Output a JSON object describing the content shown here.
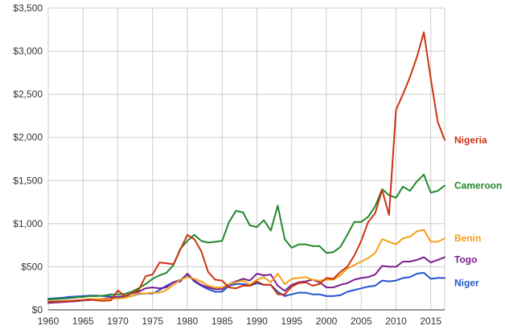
{
  "chart_data": {
    "type": "line",
    "title": "",
    "xlabel": "",
    "ylabel": "",
    "xlim": [
      1960,
      2017
    ],
    "ylim": [
      0,
      3500
    ],
    "y_ticks": [
      0,
      500,
      1000,
      1500,
      2000,
      2500,
      3000,
      3500
    ],
    "y_tick_labels": [
      "$0",
      "$500",
      "$1,000",
      "$1,500",
      "$2,000",
      "$2,500",
      "$3,000",
      "$3,500"
    ],
    "x_ticks": [
      1960,
      1965,
      1970,
      1975,
      1980,
      1985,
      1990,
      1995,
      2000,
      2005,
      2010,
      2015
    ],
    "x_tick_labels": [
      "1960",
      "1965",
      "1970",
      "1975",
      "1980",
      "1985",
      "1990",
      "1995",
      "2000",
      "2005",
      "2010",
      "2015"
    ],
    "grid": true,
    "legend": "inline-right",
    "x": [
      1960,
      1961,
      1962,
      1963,
      1964,
      1965,
      1966,
      1967,
      1968,
      1969,
      1970,
      1971,
      1972,
      1973,
      1974,
      1975,
      1976,
      1977,
      1978,
      1979,
      1980,
      1981,
      1982,
      1983,
      1984,
      1985,
      1986,
      1987,
      1988,
      1989,
      1990,
      1991,
      1992,
      1993,
      1994,
      1995,
      1996,
      1997,
      1998,
      1999,
      2000,
      2001,
      2002,
      2003,
      2004,
      2005,
      2006,
      2007,
      2008,
      2009,
      2010,
      2011,
      2012,
      2013,
      2014,
      2015,
      2016,
      2017
    ],
    "series": [
      {
        "name": "Nigeria",
        "color": "#cc3311",
        "values": [
          95,
          95,
          100,
          100,
          110,
          115,
          120,
          110,
          105,
          110,
          225,
          160,
          190,
          230,
          390,
          410,
          550,
          540,
          530,
          700,
          870,
          820,
          680,
          440,
          350,
          340,
          260,
          250,
          280,
          280,
          330,
          290,
          290,
          180,
          180,
          270,
          310,
          320,
          280,
          300,
          370,
          360,
          440,
          500,
          630,
          800,
          1020,
          1120,
          1390,
          1100,
          2320,
          2500,
          2700,
          2930,
          3220,
          2680,
          2180,
          1970
        ]
      },
      {
        "name": "Cameroon",
        "color": "#22882a",
        "values": [
          120,
          125,
          130,
          135,
          145,
          150,
          160,
          160,
          165,
          180,
          180,
          185,
          210,
          250,
          300,
          360,
          400,
          430,
          520,
          710,
          800,
          870,
          800,
          780,
          790,
          800,
          1020,
          1150,
          1130,
          980,
          960,
          1040,
          920,
          1210,
          820,
          720,
          760,
          760,
          740,
          740,
          660,
          670,
          730,
          870,
          1020,
          1020,
          1080,
          1200,
          1400,
          1330,
          1300,
          1430,
          1380,
          1490,
          1570,
          1360,
          1380,
          1440
        ]
      },
      {
        "name": "Benin",
        "color": "#f4a018",
        "values": [
          95,
          100,
          100,
          105,
          110,
          115,
          125,
          125,
          125,
          130,
          130,
          140,
          160,
          190,
          190,
          200,
          200,
          230,
          290,
          350,
          380,
          360,
          330,
          280,
          260,
          260,
          300,
          320,
          340,
          290,
          350,
          380,
          320,
          420,
          300,
          360,
          370,
          380,
          350,
          340,
          350,
          350,
          400,
          480,
          520,
          560,
          600,
          660,
          820,
          790,
          760,
          830,
          850,
          910,
          930,
          790,
          790,
          830
        ]
      },
      {
        "name": "Togo",
        "color": "#7a1e8e",
        "values": [
          80,
          85,
          90,
          95,
          100,
          110,
          115,
          120,
          130,
          140,
          150,
          160,
          190,
          210,
          250,
          260,
          250,
          260,
          320,
          330,
          420,
          340,
          290,
          260,
          240,
          240,
          300,
          330,
          360,
          340,
          420,
          400,
          410,
          280,
          220,
          290,
          320,
          330,
          350,
          320,
          260,
          260,
          290,
          310,
          350,
          370,
          380,
          410,
          510,
          500,
          500,
          560,
          560,
          580,
          610,
          550,
          580,
          610
        ]
      },
      {
        "name": "Niger",
        "color": "#2255cc",
        "values": [
          130,
          135,
          140,
          150,
          155,
          160,
          165,
          165,
          160,
          155,
          150,
          150,
          160,
          185,
          190,
          190,
          230,
          280,
          320,
          350,
          410,
          330,
          280,
          240,
          210,
          210,
          280,
          300,
          300,
          280,
          310,
          290,
          290,
          210,
          160,
          180,
          200,
          200,
          180,
          180,
          160,
          160,
          170,
          210,
          230,
          250,
          270,
          280,
          340,
          330,
          340,
          370,
          380,
          420,
          430,
          360,
          370,
          370
        ]
      }
    ]
  }
}
